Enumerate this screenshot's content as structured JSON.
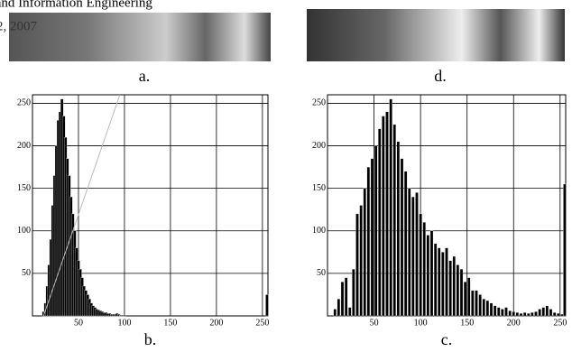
{
  "header": [
    "r and Information Engineering",
    "2, 2007"
  ],
  "images": [
    {
      "caption": "a."
    },
    {
      "caption": "d."
    }
  ],
  "chart_data": [
    {
      "type": "bar",
      "caption": "b.",
      "color": "#000",
      "x": [
        10,
        12,
        14,
        16,
        18,
        20,
        22,
        24,
        26,
        28,
        30,
        32,
        34,
        36,
        38,
        40,
        42,
        44,
        46,
        48,
        50,
        52,
        54,
        56,
        58,
        60,
        62,
        64,
        66,
        68,
        70,
        72,
        74,
        76,
        78,
        80,
        82,
        84,
        86,
        88,
        90,
        92,
        94,
        96,
        98,
        100,
        255
      ],
      "values": [
        0,
        5,
        15,
        35,
        60,
        90,
        130,
        165,
        200,
        230,
        240,
        255,
        235,
        210,
        185,
        165,
        140,
        120,
        100,
        80,
        65,
        55,
        45,
        35,
        30,
        25,
        20,
        15,
        12,
        10,
        8,
        7,
        6,
        5,
        4,
        4,
        3,
        3,
        2,
        2,
        2,
        3,
        2,
        1,
        1,
        1,
        25
      ],
      "guide": {
        "x": [
          12,
          95
        ],
        "values": [
          0,
          260
        ],
        "color": "#bbbbbb"
      },
      "xlim": [
        0,
        256
      ],
      "ylim": [
        0,
        260
      ],
      "xticks": [
        50,
        100,
        150,
        200,
        250
      ],
      "yticks": [
        50,
        100,
        150,
        200,
        250
      ],
      "grid": true
    },
    {
      "type": "bar",
      "caption": "c.",
      "color": "#000",
      "x": [
        8,
        12,
        16,
        20,
        24,
        28,
        32,
        36,
        40,
        44,
        48,
        52,
        56,
        60,
        64,
        68,
        72,
        76,
        80,
        84,
        88,
        92,
        96,
        100,
        104,
        108,
        112,
        116,
        120,
        124,
        128,
        132,
        136,
        140,
        144,
        148,
        152,
        156,
        160,
        164,
        168,
        172,
        176,
        180,
        184,
        188,
        192,
        196,
        200,
        204,
        208,
        212,
        216,
        220,
        224,
        228,
        232,
        236,
        240,
        244,
        248,
        252,
        255
      ],
      "values": [
        8,
        20,
        40,
        45,
        10,
        55,
        120,
        130,
        150,
        175,
        185,
        200,
        220,
        235,
        240,
        255,
        225,
        205,
        185,
        170,
        150,
        140,
        145,
        120,
        110,
        95,
        100,
        85,
        80,
        75,
        80,
        65,
        70,
        60,
        55,
        40,
        45,
        30,
        30,
        25,
        20,
        18,
        15,
        12,
        10,
        8,
        10,
        6,
        5,
        4,
        3,
        4,
        3,
        4,
        5,
        8,
        10,
        12,
        8,
        4,
        3,
        2,
        155
      ],
      "xlim": [
        0,
        256
      ],
      "ylim": [
        0,
        260
      ],
      "xticks": [
        50,
        100,
        150,
        200,
        250
      ],
      "yticks": [
        50,
        100,
        150,
        200,
        250
      ],
      "grid": true
    }
  ]
}
